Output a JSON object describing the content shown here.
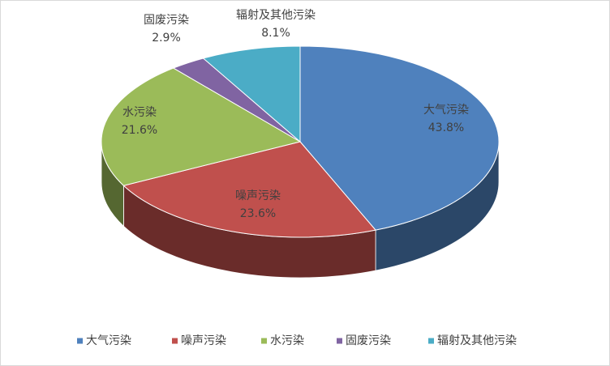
{
  "chart_data": {
    "type": "pie3d",
    "categories": [
      "大气污染",
      "噪声污染",
      "水污染",
      "固废污染",
      "辐射及其他污染"
    ],
    "values": [
      43.8,
      23.6,
      21.6,
      2.9,
      8.1
    ],
    "value_labels": [
      "43.8%",
      "23.6%",
      "21.6%",
      "2.9%",
      "8.1%"
    ],
    "colors": [
      "#4f81bd",
      "#c0504d",
      "#9bbb59",
      "#8064a2",
      "#4bacc6"
    ],
    "legend": "bottom"
  }
}
